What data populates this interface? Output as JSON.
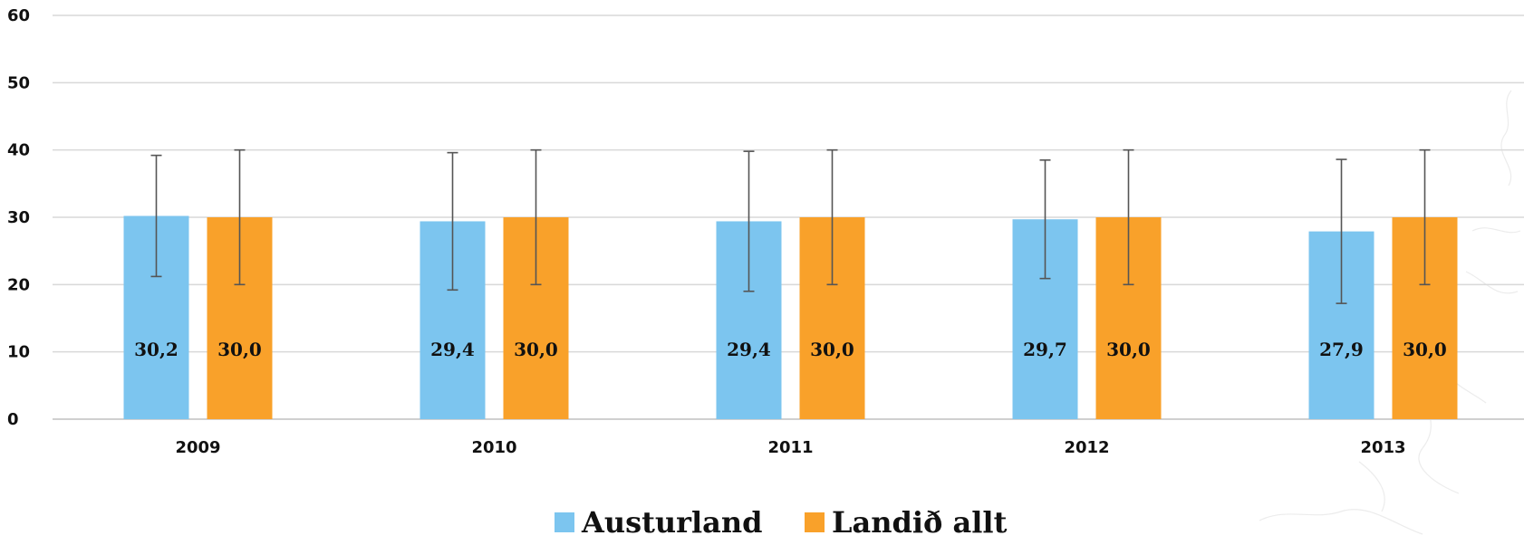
{
  "chart_data": {
    "type": "bar",
    "categories": [
      "2009",
      "2010",
      "2011",
      "2012",
      "2013"
    ],
    "series": [
      {
        "name": "Austurland",
        "color": "#7cc5ef",
        "values": [
          30.2,
          29.4,
          29.4,
          29.7,
          27.9
        ],
        "value_labels": [
          "30,2",
          "29,4",
          "29,4",
          "29,7",
          "27,9"
        ],
        "error_low": [
          21.2,
          19.2,
          19.0,
          20.9,
          17.2
        ],
        "error_high": [
          39.2,
          39.6,
          39.8,
          38.5,
          38.6
        ]
      },
      {
        "name": "Landið allt",
        "color": "#f9a12a",
        "values": [
          30.0,
          30.0,
          30.0,
          30.0,
          30.0
        ],
        "value_labels": [
          "30,0",
          "30,0",
          "30,0",
          "30,0",
          "30,0"
        ],
        "error_low": [
          20.0,
          20.0,
          20.0,
          20.0,
          20.0
        ],
        "error_high": [
          40.0,
          40.0,
          40.0,
          40.0,
          40.0
        ]
      }
    ],
    "y_ticks": [
      "0",
      "10",
      "20",
      "30",
      "40",
      "50",
      "60"
    ],
    "ylim": [
      0,
      60
    ],
    "grid": true,
    "legend": "bottom-center",
    "title": "",
    "xlabel": "",
    "ylabel": ""
  }
}
